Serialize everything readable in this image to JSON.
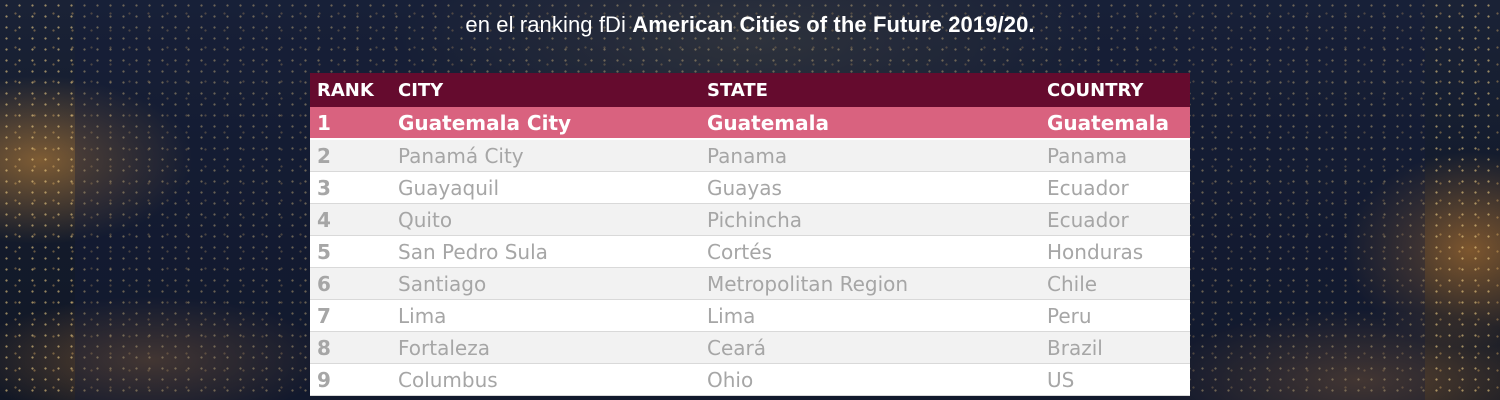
{
  "header": {
    "subtitle_prefix": "en el ranking fDi ",
    "subtitle_bold": "American Cities of the Future 2019/20."
  },
  "table": {
    "columns": [
      "RANK",
      "CITY",
      "STATE",
      "COUNTRY"
    ],
    "rows": [
      {
        "rank": "1",
        "city": "Guatemala City",
        "state": "Guatemala",
        "country": "Guatemala"
      },
      {
        "rank": "2",
        "city": "Panamá City",
        "state": "Panama",
        "country": "Panama"
      },
      {
        "rank": "3",
        "city": "Guayaquil",
        "state": "Guayas",
        "country": "Ecuador"
      },
      {
        "rank": "4",
        "city": "Quito",
        "state": "Pichincha",
        "country": "Ecuador"
      },
      {
        "rank": "5",
        "city": "San Pedro Sula",
        "state": "Cortés",
        "country": "Honduras"
      },
      {
        "rank": "6",
        "city": "Santiago",
        "state": "Metropolitan Region",
        "country": "Chile"
      },
      {
        "rank": "7",
        "city": "Lima",
        "state": "Lima",
        "country": "Peru"
      },
      {
        "rank": "8",
        "city": "Fortaleza",
        "state": "Ceará",
        "country": "Brazil"
      },
      {
        "rank": "9",
        "city": "Columbus",
        "state": "Ohio",
        "country": "US"
      }
    ]
  },
  "colors": {
    "header_bg": "#650b2e",
    "highlight_row": "#d9627f",
    "row_text": "#a6a6a6"
  }
}
